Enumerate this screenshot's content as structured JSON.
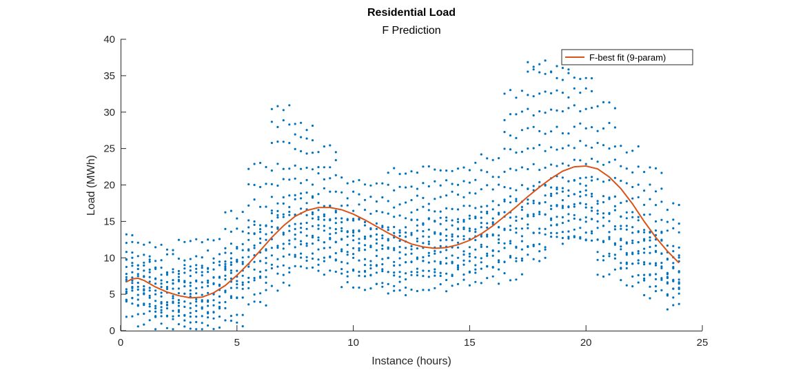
{
  "chart_data": {
    "type": "scatter",
    "title": "Residential Load",
    "subtitle": "F Prediction",
    "xlabel": "Instance (hours)",
    "ylabel": "Load (MWh)",
    "xlim": [
      0,
      25
    ],
    "ylim": [
      0,
      40
    ],
    "xticks": [
      0,
      5,
      10,
      15,
      20,
      25
    ],
    "yticks": [
      0,
      5,
      10,
      15,
      20,
      25,
      30,
      35,
      40
    ],
    "grid": false,
    "legend_position": "top-right",
    "colors": {
      "scatter": "#0072BD",
      "fit": "#D95319",
      "axis": "#262626"
    },
    "scatter_series": {
      "x_start": 0.25,
      "x_step": 0.25,
      "clusters": [
        [
          0.25,
          [
            2.5,
            3.5,
            4.5,
            5.5,
            6.5,
            7.0,
            8.0,
            9.5,
            10.5,
            12.0,
            13.0
          ],
          [
            4.0,
            5.0,
            6.0,
            7.5,
            8.5,
            9.5
          ]
        ],
        [
          1.0,
          [
            1.0,
            2.5,
            3.5,
            4.5,
            5.5,
            6.5,
            7.5,
            8.5,
            9.5,
            10.5,
            12.0
          ],
          [
            3.5,
            5.0,
            6.0,
            7.0,
            9.0
          ]
        ],
        [
          2.0,
          [
            0.5,
            1.5,
            2.5,
            3.5,
            4.5,
            5.5,
            6.5,
            7.5,
            8.5,
            10.0,
            11.5
          ],
          [
            2.5,
            3.5,
            5.0,
            6.0,
            8.0
          ]
        ],
        [
          3.0,
          [
            0.3,
            1.5,
            2.5,
            3.5,
            4.5,
            5.5,
            6.5,
            7.5,
            8.5,
            10.0,
            12.0
          ],
          [
            2.5,
            4.0,
            5.0,
            6.5,
            8.0
          ]
        ],
        [
          4.0,
          [
            0.5,
            1.5,
            2.5,
            3.5,
            4.5,
            5.5,
            6.5,
            7.5,
            9.0,
            10.5,
            12.5
          ],
          [
            3.0,
            4.5,
            6.0,
            7.0,
            9.0
          ]
        ],
        [
          5.0,
          [
            1.0,
            2.5,
            4.0,
            5.5,
            7.0,
            8.0,
            9.0,
            10.0,
            11.5,
            13.5,
            16.0
          ],
          [
            5.0,
            6.5,
            8.0,
            9.5,
            11.0
          ]
        ],
        [
          6.0,
          [
            3.5,
            5.5,
            7.0,
            8.5,
            10.0,
            11.5,
            13.0,
            15.0,
            17.5,
            20.0,
            22.5
          ],
          [
            7.0,
            9.0,
            11.0,
            13.0,
            14.5
          ]
        ],
        [
          7.0,
          [
            6.0,
            8.0,
            10.0,
            12.0,
            14.0,
            16.0,
            18.0,
            20.5,
            22.5,
            25.5,
            28.5,
            30.5
          ],
          [
            9.0,
            11.5,
            13.5,
            15.5,
            17.0
          ]
        ],
        [
          8.0,
          [
            8.5,
            10.0,
            12.0,
            13.5,
            15.0,
            16.5,
            18.5,
            20.5,
            22.5,
            24.5,
            26.5,
            28.0
          ],
          [
            10.5,
            12.5,
            14.0,
            16.0,
            18.0
          ]
        ],
        [
          9.0,
          [
            8.0,
            9.5,
            11.0,
            12.5,
            14.0,
            15.5,
            17.0,
            19.0,
            21.0,
            23.0,
            25.0
          ],
          [
            10.0,
            12.0,
            13.5,
            15.0,
            16.5
          ]
        ],
        [
          10.0,
          [
            6.5,
            8.0,
            9.5,
            11.0,
            12.5,
            14.0,
            15.5,
            17.0,
            18.5,
            20.5
          ],
          [
            8.5,
            10.5,
            12.0,
            13.5,
            15.0
          ]
        ],
        [
          11.0,
          [
            6.0,
            7.0,
            8.5,
            10.0,
            11.5,
            13.0,
            14.5,
            16.0,
            18.0,
            20.0
          ],
          [
            8.0,
            9.5,
            11.5,
            13.0,
            14.5
          ]
        ],
        [
          12.0,
          [
            5.0,
            6.5,
            8.0,
            9.5,
            11.0,
            12.5,
            14.0,
            15.5,
            17.5,
            19.5,
            22.0
          ],
          [
            7.5,
            9.5,
            11.0,
            12.5,
            14.0
          ]
        ],
        [
          13.0,
          [
            6.0,
            7.5,
            9.0,
            10.5,
            12.0,
            13.5,
            15.0,
            16.5,
            18.0,
            20.0,
            22.0
          ],
          [
            8.0,
            10.0,
            11.5,
            13.0,
            15.0
          ]
        ],
        [
          14.0,
          [
            6.0,
            7.5,
            9.0,
            10.5,
            12.0,
            13.5,
            15.0,
            16.5,
            18.5,
            20.5,
            22.5
          ],
          [
            8.0,
            10.0,
            11.5,
            13.0,
            15.0
          ]
        ],
        [
          15.0,
          [
            6.5,
            8.0,
            9.5,
            11.0,
            12.5,
            14.0,
            15.5,
            17.0,
            18.5,
            20.5,
            22.5
          ],
          [
            8.5,
            10.5,
            12.0,
            13.5,
            15.5
          ]
        ],
        [
          16.0,
          [
            7.0,
            8.5,
            10.0,
            11.5,
            13.0,
            14.5,
            16.0,
            17.5,
            19.5,
            21.5,
            24.0
          ],
          [
            9.0,
            11.0,
            12.5,
            14.5,
            16.5
          ]
        ],
        [
          17.0,
          [
            7.5,
            9.5,
            11.5,
            13.5,
            15.5,
            17.5,
            19.5,
            22.0,
            24.5,
            27.0,
            29.5,
            32.5
          ],
          [
            10.0,
            12.0,
            14.0,
            16.0,
            18.0
          ]
        ],
        [
          18.0,
          [
            10.0,
            12.0,
            14.0,
            16.0,
            18.0,
            20.0,
            22.5,
            25.0,
            27.5,
            30.0,
            32.5,
            35.5,
            36.5
          ],
          [
            11.5,
            13.5,
            15.5,
            17.5,
            19.5
          ]
        ],
        [
          19.0,
          [
            12.5,
            14.0,
            15.5,
            17.0,
            18.5,
            20.0,
            22.5,
            25.0,
            27.5,
            30.0,
            32.5,
            35.0,
            36.0
          ],
          [
            13.0,
            15.0,
            17.0,
            19.0,
            21.0
          ]
        ],
        [
          20.0,
          [
            12.5,
            14.0,
            15.5,
            17.0,
            18.5,
            20.5,
            23.0,
            25.5,
            28.0,
            30.5,
            33.0,
            35.0
          ],
          [
            13.0,
            15.0,
            17.0,
            19.0,
            20.5
          ]
        ],
        [
          21.0,
          [
            8.0,
            10.0,
            12.0,
            14.0,
            16.0,
            18.0,
            20.5,
            23.0,
            25.5,
            28.0,
            31.0
          ],
          [
            10.5,
            12.5,
            14.5,
            16.5,
            18.0
          ]
        ],
        [
          22.0,
          [
            6.5,
            8.0,
            9.5,
            11.0,
            12.5,
            14.0,
            16.0,
            18.0,
            20.0,
            22.0,
            25.0
          ],
          [
            9.0,
            11.0,
            12.5,
            14.0,
            15.5
          ]
        ],
        [
          23.0,
          [
            5.0,
            6.5,
            8.0,
            9.5,
            11.0,
            12.5,
            14.0,
            15.5,
            17.5,
            19.5,
            22.0
          ],
          [
            7.5,
            9.0,
            10.5,
            12.0,
            13.5
          ]
        ],
        [
          24.0,
          [
            3.5,
            4.5,
            5.5,
            6.5,
            7.5,
            8.5,
            9.5,
            10.5,
            12.0,
            13.5,
            15.0,
            17.0
          ],
          [
            6.0,
            7.0,
            8.0,
            9.5
          ]
        ]
      ]
    },
    "series": [
      {
        "name": "F-best fit (9-param)",
        "type": "line",
        "x": [
          0.25,
          0.5,
          0.75,
          1,
          1.5,
          2,
          2.5,
          3,
          3.5,
          4,
          4.5,
          5,
          5.5,
          6,
          6.5,
          7,
          7.5,
          8,
          8.5,
          9,
          9.5,
          10,
          10.5,
          11,
          11.5,
          12,
          12.5,
          13,
          13.5,
          14,
          14.5,
          15,
          15.5,
          16,
          16.5,
          17,
          17.5,
          18,
          18.5,
          19,
          19.5,
          20,
          20.5,
          21,
          21.5,
          22,
          22.5,
          23,
          23.5,
          24
        ],
        "y": [
          6.7,
          7.1,
          7.2,
          6.9,
          6.0,
          5.3,
          4.8,
          4.5,
          4.6,
          5.2,
          6.2,
          7.6,
          9.2,
          11.0,
          12.8,
          14.4,
          15.7,
          16.5,
          16.9,
          16.9,
          16.6,
          16.0,
          15.2,
          14.3,
          13.4,
          12.6,
          11.9,
          11.5,
          11.3,
          11.4,
          11.8,
          12.4,
          13.3,
          14.4,
          15.7,
          17.0,
          18.4,
          19.7,
          20.9,
          21.9,
          22.5,
          22.6,
          22.2,
          21.1,
          19.5,
          17.4,
          15.0,
          12.8,
          10.9,
          9.3
        ]
      }
    ]
  }
}
